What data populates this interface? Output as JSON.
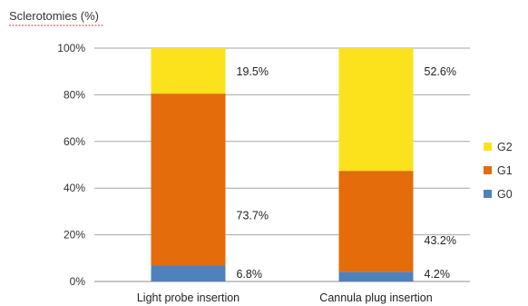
{
  "chart_data": {
    "type": "bar",
    "stacked": true,
    "ylabel": "Sclerotomies (%)",
    "xlabel": "",
    "ylim": [
      0,
      100
    ],
    "y_ticks": [
      "0%",
      "20%",
      "40%",
      "60%",
      "80%",
      "100%"
    ],
    "y_tick_values": [
      0,
      20,
      40,
      60,
      80,
      100
    ],
    "categories": [
      "Light probe insertion",
      "Cannula plug insertion"
    ],
    "series": [
      {
        "name": "G0",
        "color": "#4f81bd",
        "values": [
          6.8,
          4.2
        ],
        "labels": [
          "6.8%",
          "4.2%"
        ]
      },
      {
        "name": "G1",
        "color": "#e46c0a",
        "values": [
          73.7,
          43.2
        ],
        "labels": [
          "73.7%",
          "43.2%"
        ]
      },
      {
        "name": "G2",
        "color": "#fbe21d",
        "values": [
          19.5,
          52.6
        ],
        "labels": [
          "19.5%",
          "52.6%"
        ]
      }
    ],
    "legend_order": [
      "G2",
      "G1",
      "G0"
    ],
    "legend_placement": "right",
    "grid": true
  }
}
